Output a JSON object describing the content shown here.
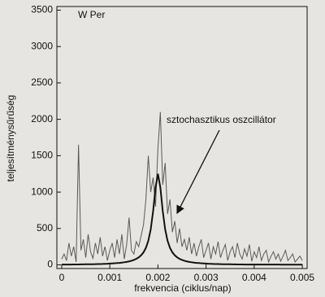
{
  "chart_data": {
    "type": "line",
    "series_label": "W Per",
    "annotation": "sztochasztikus oszcillátor",
    "xlabel": "frekvencia (ciklus/nap)",
    "ylabel": "teljesítménysűrűség",
    "x": [
      0,
      5e-05,
      0.0001,
      0.00015,
      0.0002,
      0.00025,
      0.0003,
      0.00035,
      0.0004,
      0.00045,
      0.0005,
      0.00055,
      0.0006,
      0.00065,
      0.0007,
      0.00075,
      0.0008,
      0.00085,
      0.0009,
      0.00095,
      0.001,
      0.00105,
      0.0011,
      0.00115,
      0.0012,
      0.00125,
      0.0013,
      0.00135,
      0.0014,
      0.00145,
      0.0015,
      0.00155,
      0.0016,
      0.00165,
      0.0017,
      0.00175,
      0.0018,
      0.00185,
      0.0019,
      0.00195,
      0.002,
      0.00205,
      0.0021,
      0.00215,
      0.0022,
      0.00225,
      0.0023,
      0.00235,
      0.0024,
      0.00245,
      0.0025,
      0.00255,
      0.0026,
      0.00265,
      0.0027,
      0.00275,
      0.0028,
      0.00285,
      0.0029,
      0.00295,
      0.003,
      0.00305,
      0.0031,
      0.00315,
      0.0032,
      0.00325,
      0.0033,
      0.00335,
      0.0034,
      0.00345,
      0.0035,
      0.00355,
      0.0036,
      0.00365,
      0.0037,
      0.00375,
      0.0038,
      0.00385,
      0.0039,
      0.00395,
      0.004,
      0.00405,
      0.0041,
      0.00415,
      0.0042,
      0.00425,
      0.0043,
      0.00435,
      0.0044,
      0.00445,
      0.0045,
      0.00455,
      0.0046,
      0.00465,
      0.0047,
      0.00475,
      0.0048,
      0.00485,
      0.0049,
      0.00495,
      0.005
    ],
    "series": [
      {
        "color": "#5a5a5a",
        "width": 1,
        "values": [
          80,
          150,
          60,
          300,
          120,
          250,
          40,
          1650,
          200,
          350,
          100,
          420,
          180,
          90,
          300,
          150,
          380,
          120,
          250,
          60,
          200,
          300,
          100,
          350,
          150,
          420,
          80,
          280,
          650,
          200,
          150,
          320,
          250,
          400,
          550,
          900,
          1500,
          1000,
          1200,
          800,
          1600,
          2100,
          1100,
          1400,
          700,
          900,
          450,
          600,
          300,
          500,
          250,
          350,
          200,
          380,
          150,
          300,
          120,
          250,
          350,
          100,
          200,
          300,
          80,
          250,
          150,
          320,
          100,
          200,
          280,
          60,
          180,
          250,
          100,
          300,
          150,
          80,
          220,
          120,
          280,
          50,
          180,
          100,
          250,
          60,
          150,
          200,
          40,
          120,
          180,
          80,
          150,
          50,
          120,
          200,
          60,
          100,
          150,
          40,
          80,
          120,
          60
        ]
      },
      {
        "color": "#111111",
        "width": 2,
        "values": [
          4,
          5,
          5,
          5,
          5,
          6,
          6,
          6,
          7,
          7,
          8,
          8,
          9,
          9,
          10,
          11,
          12,
          13,
          15,
          16,
          18,
          20,
          22,
          25,
          27,
          31,
          36,
          41,
          48,
          57,
          68,
          83,
          103,
          131,
          172,
          234,
          331,
          488,
          738,
          1065,
          1250,
          1065,
          738,
          488,
          331,
          234,
          172,
          131,
          103,
          83,
          68,
          57,
          48,
          41,
          36,
          31,
          27,
          25,
          22,
          20,
          18,
          16,
          15,
          13,
          12,
          11,
          10,
          9,
          9,
          8,
          8,
          7,
          7,
          6,
          6,
          6,
          5,
          5,
          5,
          5,
          5,
          4,
          4,
          4,
          4,
          4,
          4,
          4,
          4,
          4,
          4,
          3,
          3,
          3,
          3,
          3,
          3,
          3,
          3,
          3,
          3
        ]
      }
    ],
    "xlim": [
      -0.0001,
      0.0051
    ],
    "xticks": [
      0,
      0.001,
      0.002,
      0.003,
      0.004,
      0.005
    ],
    "ylim": [
      -50,
      3550
    ],
    "yticks": [
      0,
      500,
      1000,
      1500,
      2000,
      2500,
      3000,
      3500
    ]
  }
}
